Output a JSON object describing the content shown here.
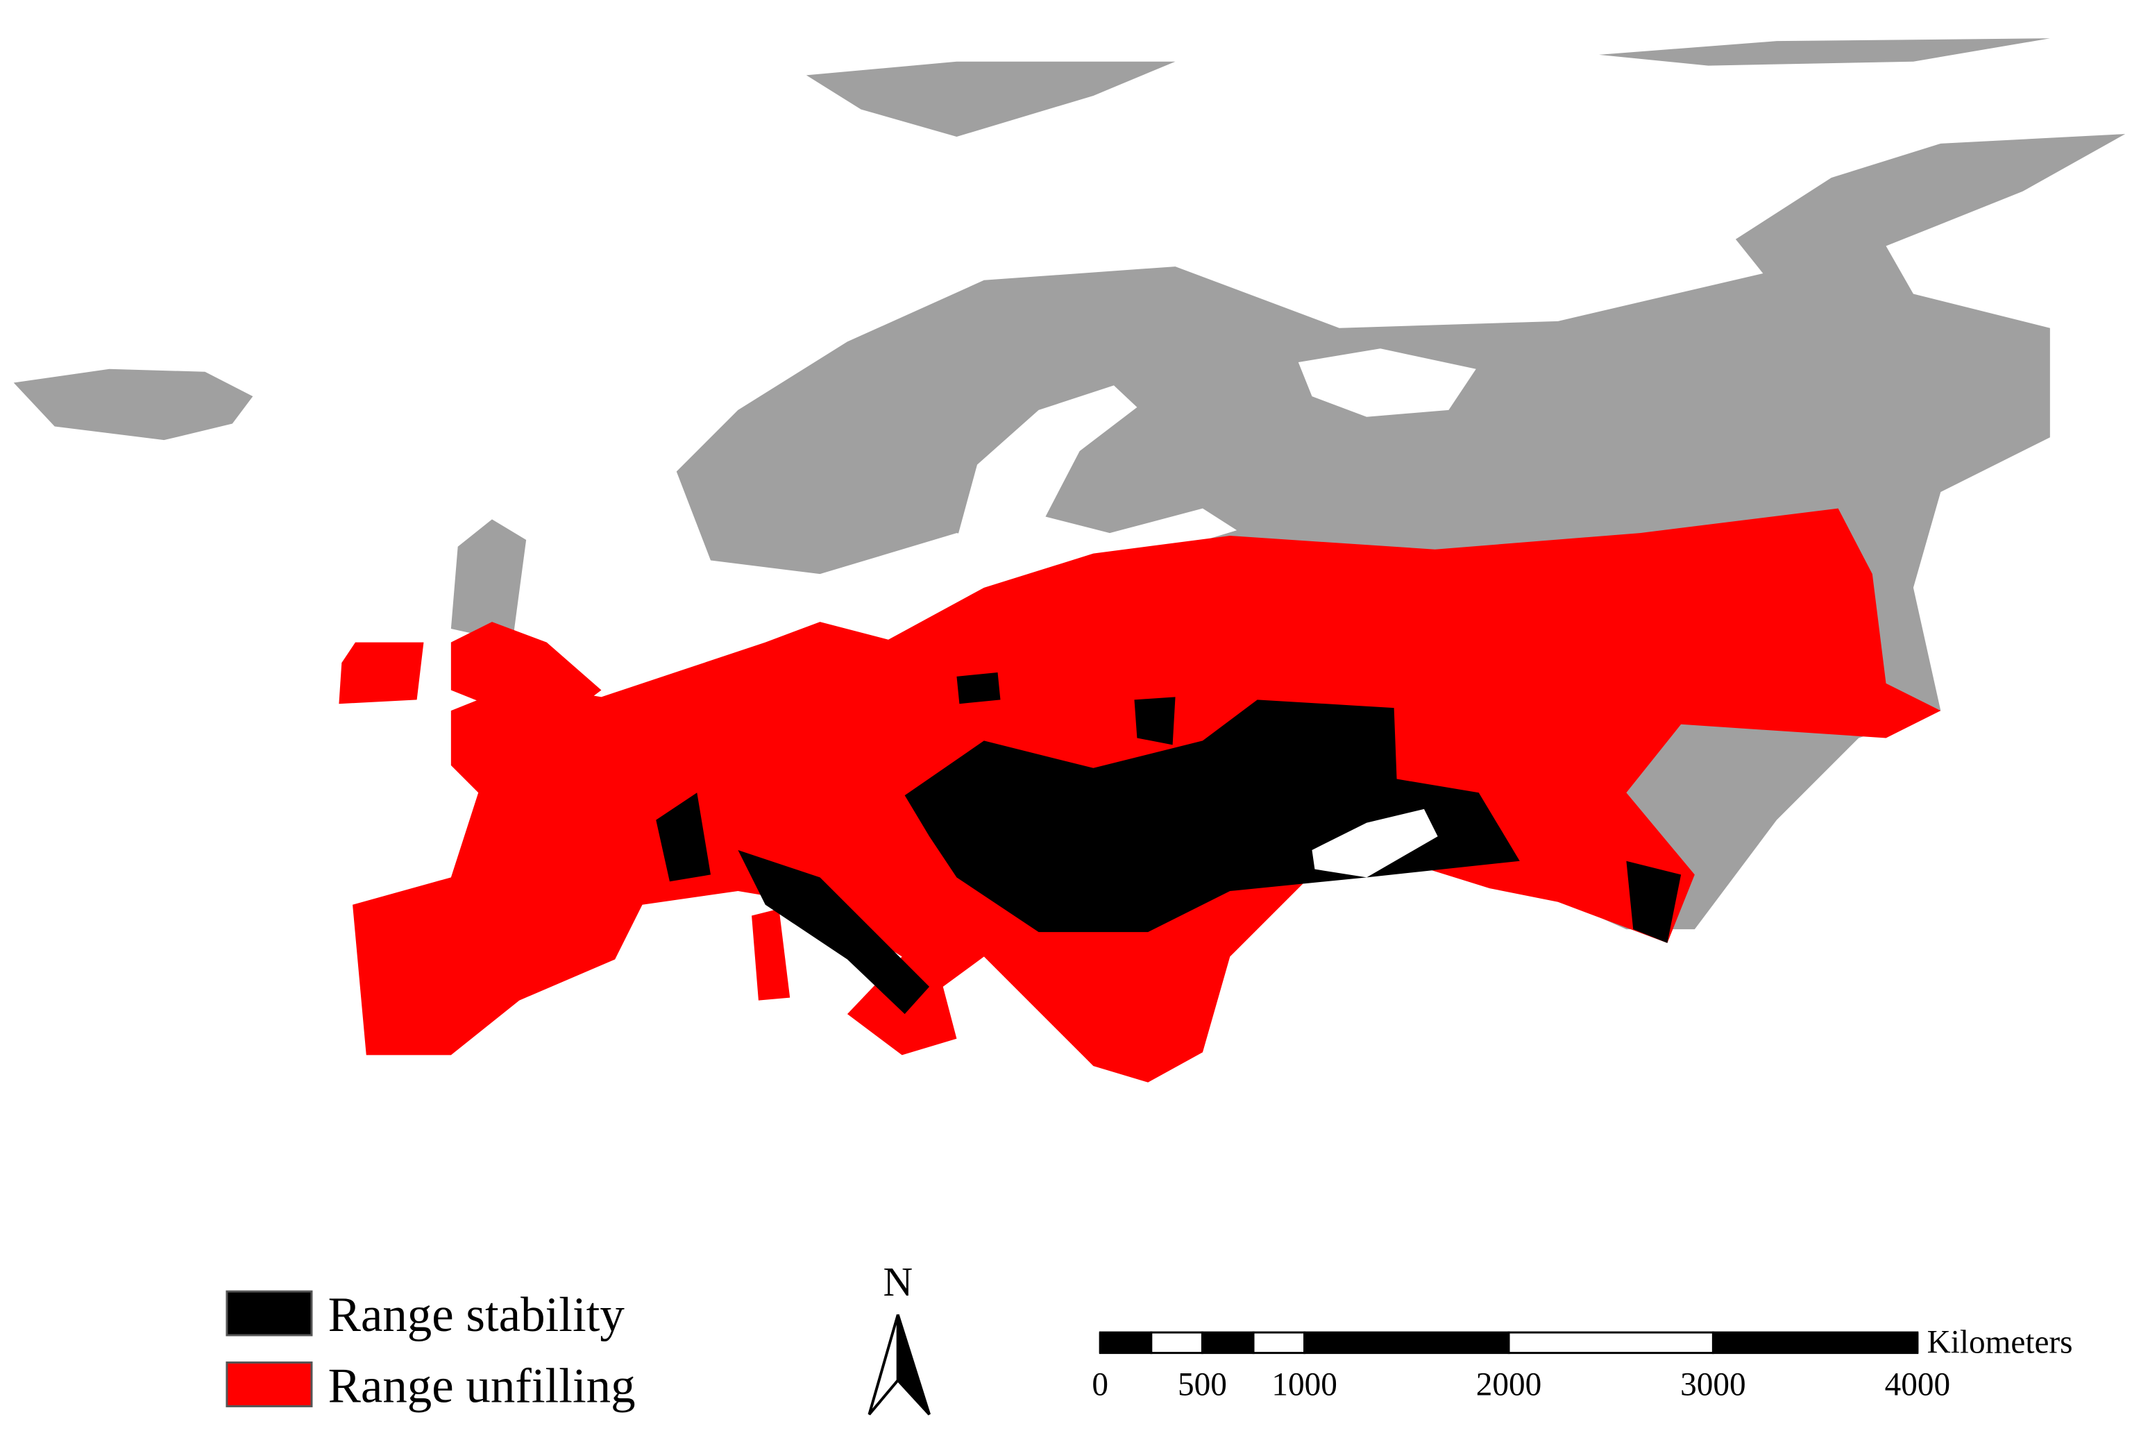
{
  "legend": [
    {
      "label": "Range stability",
      "color": "#000000"
    },
    {
      "label": "Range unfilling",
      "color": "#ff0000"
    }
  ],
  "north_arrow": {
    "label": "N"
  },
  "scale_bar": {
    "unit": "Kilometers",
    "ticks": [
      0,
      500,
      1000,
      2000,
      3000,
      4000
    ]
  }
}
